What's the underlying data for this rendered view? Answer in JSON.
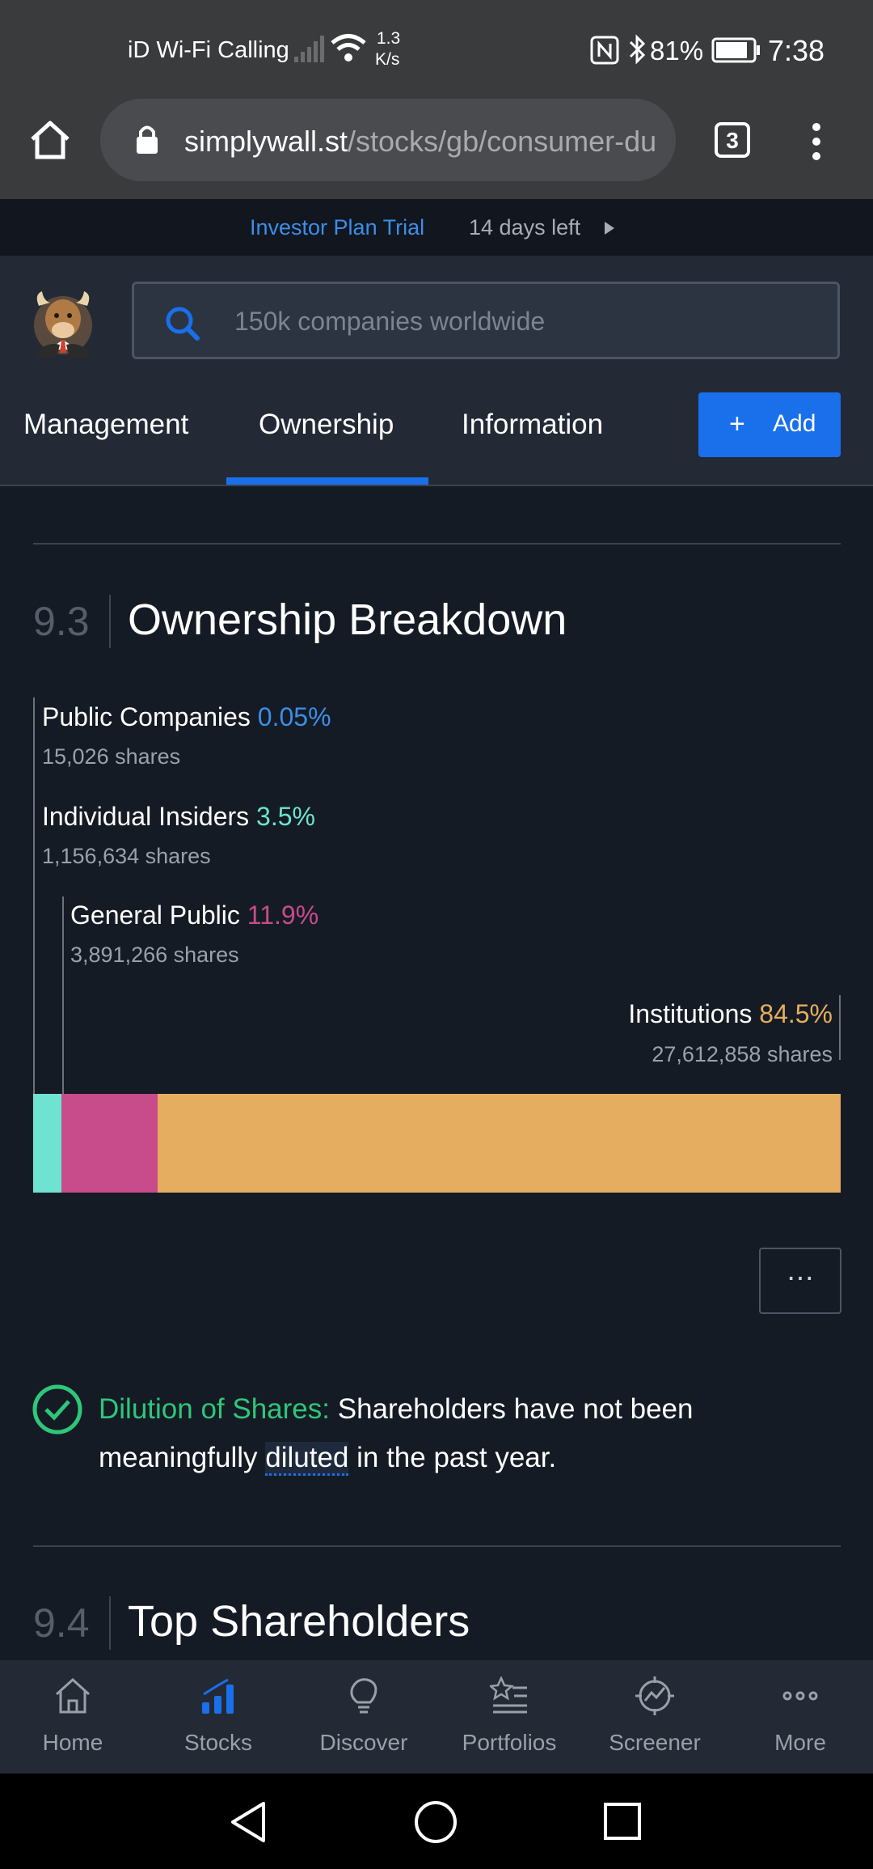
{
  "status_bar": {
    "carrier": "iD Wi-Fi Calling",
    "speed_value": "1.3",
    "speed_unit": "K/s",
    "battery": "81%",
    "time": "7:38"
  },
  "browser": {
    "url_domain": "simplywall.st",
    "url_path": "/stocks/gb/consumer-du",
    "tab_count": "3"
  },
  "trial": {
    "plan": "Investor Plan Trial",
    "days_left": "14 days left"
  },
  "header": {
    "search_placeholder": "150k companies worldwide",
    "tabs": [
      "Management",
      "Ownership",
      "Information"
    ],
    "active_tab": "Ownership",
    "add_plus": "+",
    "add_label": "Add"
  },
  "section_93": {
    "number": "9.3",
    "title": "Ownership Breakdown"
  },
  "chart_data": {
    "type": "bar",
    "stacked": true,
    "orientation": "horizontal",
    "categories": [
      "Public Companies",
      "Individual Insiders",
      "General Public",
      "Institutions"
    ],
    "values": [
      0.05,
      3.5,
      11.9,
      84.5
    ],
    "value_labels": [
      "0.05%",
      "3.5%",
      "11.9%",
      "84.5%"
    ],
    "shares": [
      "15,026 shares",
      "1,156,634 shares",
      "3,891,266 shares",
      "27,612,858 shares"
    ],
    "colors": [
      "#3b8ee8",
      "#6ee3d2",
      "#c84b8c",
      "#e5ad5f"
    ]
  },
  "more_button": "⋯",
  "dilution": {
    "title": "Dilution of Shares:",
    "text_before": "Shareholders have not been",
    "text_line2_start": "meaningfully",
    "highlight": "diluted",
    "text_end": "in the past year."
  },
  "section_94": {
    "number": "9.4",
    "title": "Top Shareholders"
  },
  "bottom_nav": [
    {
      "label": "Home",
      "icon": "home-icon"
    },
    {
      "label": "Stocks",
      "icon": "stocks-icon"
    },
    {
      "label": "Discover",
      "icon": "lightbulb-icon"
    },
    {
      "label": "Portfolios",
      "icon": "portfolio-icon"
    },
    {
      "label": "Screener",
      "icon": "screener-icon"
    },
    {
      "label": "More",
      "icon": "more-dots-icon"
    }
  ],
  "colors": {
    "accent": "#1a6fea",
    "green": "#2fc67a"
  }
}
